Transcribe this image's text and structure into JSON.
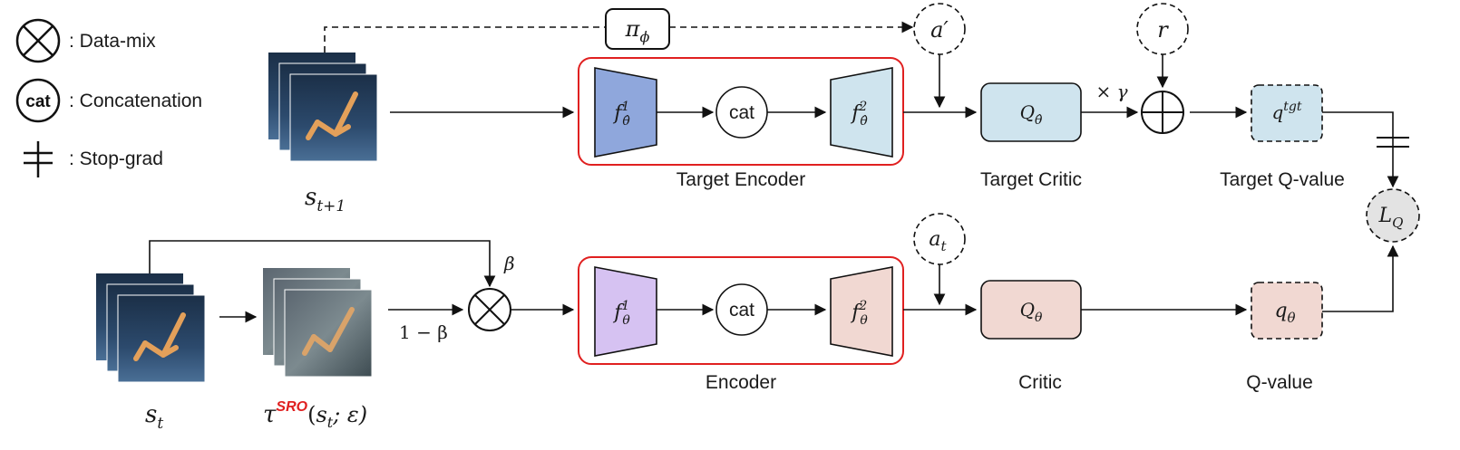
{
  "legend": {
    "data_mix": ": Data-mix",
    "cat_symbol": "cat",
    "concatenation": ": Concatenation",
    "stop_grad": ": Stop-grad"
  },
  "top_row": {
    "state": {
      "base": "s",
      "sub": "t+1"
    },
    "policy": {
      "base": "π",
      "sub": "ϕ"
    },
    "next_action": "a′",
    "reward": "r",
    "encoder_f1": {
      "base": "f",
      "sup": "1",
      "sub": "θ̂"
    },
    "cat": "cat",
    "encoder_f2": {
      "base": "f",
      "sup": "2",
      "sub": "θ̂"
    },
    "target_encoder_label": "Target Encoder",
    "critic": {
      "base": "Q",
      "sub": "θ̂"
    },
    "target_critic_label": "Target Critic",
    "discount": "× γ",
    "q_target": {
      "base": "q",
      "sup": "tgt"
    },
    "target_q_label": "Target Q-value"
  },
  "loss": {
    "base": "L",
    "sub": "Q"
  },
  "bottom_row": {
    "state": {
      "base": "s",
      "sub": "t"
    },
    "augment": {
      "tau": "τ",
      "sup": "SRO",
      "args_open": "(",
      "arg_s": "s",
      "arg_sub": "t",
      "arg_rest": "; ε)"
    },
    "beta": "β",
    "one_minus_beta": "1 − β",
    "action": {
      "base": "a",
      "sub": "t"
    },
    "encoder_f1": {
      "base": "f",
      "sup": "1",
      "sub": "θ"
    },
    "cat": "cat",
    "encoder_f2": {
      "base": "f",
      "sup": "2",
      "sub": "θ"
    },
    "encoder_label": "Encoder",
    "critic": {
      "base": "Q",
      "sub": "θ"
    },
    "critic_label": "Critic",
    "q_value": {
      "base": "q",
      "sub": "θ"
    },
    "q_value_label": "Q-value"
  },
  "colors": {
    "target_f1": "#8fa7dc",
    "target_f2": "#cfe4ee",
    "online_f1": "#d6c2f2",
    "online_f2": "#f1d8d2",
    "target_critic": "#cfe4ee",
    "online_critic": "#f1d8d2",
    "loss": "#e3e3e3",
    "encoder_border": "#e02020",
    "sro": "#e02020",
    "frame_dark": "#1d3550",
    "frame_light": "#3b5f86",
    "leg": "#e6a35a"
  }
}
